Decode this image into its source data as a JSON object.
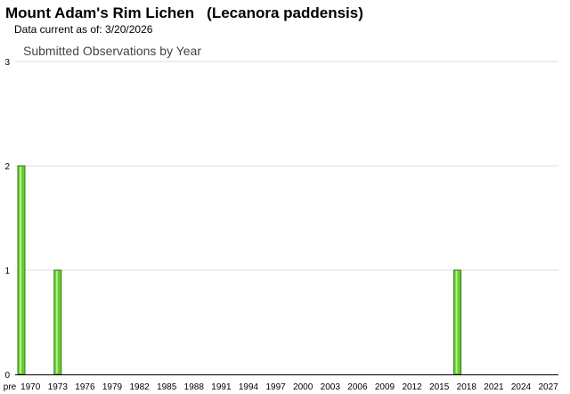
{
  "header": {
    "common_name": "Mount Adam's Rim Lichen",
    "scientific_name": "(Lecanora paddensis)",
    "data_current": "Data current as of: 3/20/2026"
  },
  "chart_data": {
    "type": "bar",
    "title": "Submitted Observations by Year",
    "xlabel": "",
    "ylabel": "",
    "ylim": [
      0,
      3
    ],
    "yticks": [
      0,
      1,
      2,
      3
    ],
    "grid": true,
    "bar_color": "#66cc33",
    "bar_edge_color": "#3a7a1a",
    "x_tick_labels": [
      "pre",
      "1970",
      "1973",
      "1976",
      "1979",
      "1982",
      "1985",
      "1988",
      "1991",
      "1994",
      "1997",
      "2000",
      "2003",
      "2006",
      "2009",
      "2012",
      "2015",
      "2018",
      "2021",
      "2024",
      "2027"
    ],
    "categories": [
      "pre",
      "1970",
      "1971",
      "1972",
      "1973",
      "1974",
      "1975",
      "1976",
      "1977",
      "1978",
      "1979",
      "1980",
      "1981",
      "1982",
      "1983",
      "1984",
      "1985",
      "1986",
      "1987",
      "1988",
      "1989",
      "1990",
      "1991",
      "1992",
      "1993",
      "1994",
      "1995",
      "1996",
      "1997",
      "1998",
      "1999",
      "2000",
      "2001",
      "2002",
      "2003",
      "2004",
      "2005",
      "2006",
      "2007",
      "2008",
      "2009",
      "2010",
      "2011",
      "2012",
      "2013",
      "2014",
      "2015",
      "2016",
      "2017",
      "2018",
      "2019",
      "2020",
      "2021",
      "2022",
      "2023",
      "2024",
      "2025",
      "2026",
      "2027"
    ],
    "values": [
      2,
      0,
      0,
      0,
      1,
      0,
      0,
      0,
      0,
      0,
      0,
      0,
      0,
      0,
      0,
      0,
      0,
      0,
      0,
      0,
      0,
      0,
      0,
      0,
      0,
      0,
      0,
      0,
      0,
      0,
      0,
      0,
      0,
      0,
      0,
      0,
      0,
      0,
      0,
      0,
      0,
      0,
      0,
      0,
      0,
      0,
      0,
      0,
      1,
      0,
      0,
      0,
      0,
      0,
      0,
      0,
      0,
      0,
      0
    ]
  }
}
